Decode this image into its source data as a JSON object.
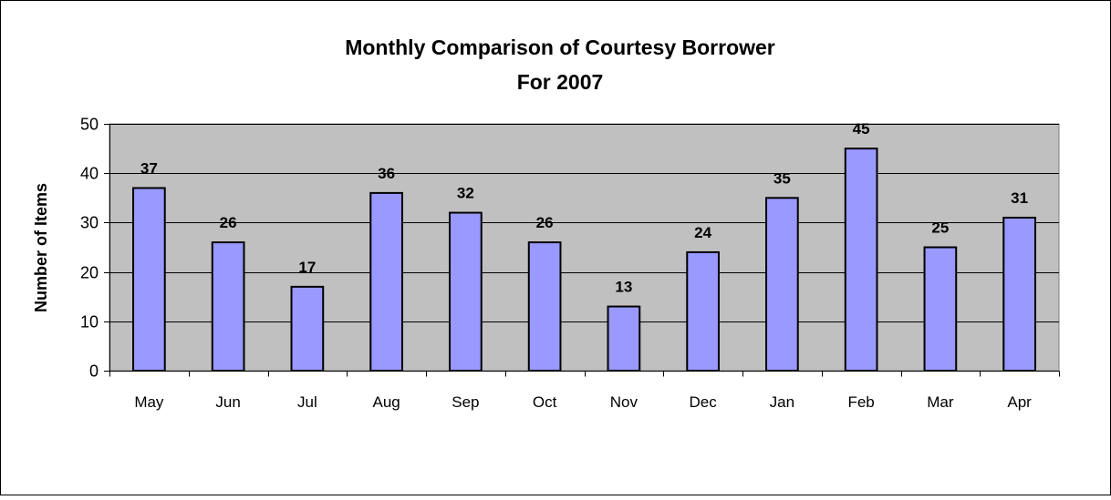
{
  "chart_data": {
    "type": "bar",
    "title": "Monthly Comparison of Courtesy Borrower",
    "subtitle": "For 2007",
    "xlabel": "",
    "ylabel": "Number of Items",
    "categories": [
      "May",
      "Jun",
      "Jul",
      "Aug",
      "Sep",
      "Oct",
      "Nov",
      "Dec",
      "Jan",
      "Feb",
      "Mar",
      "Apr"
    ],
    "values": [
      37,
      26,
      17,
      36,
      32,
      26,
      13,
      24,
      35,
      45,
      25,
      31
    ],
    "ylim": [
      0,
      50
    ],
    "yticks": [
      0,
      10,
      20,
      30,
      40,
      50
    ],
    "grid": true,
    "legend": "none",
    "data_labels": true,
    "colors": {
      "bar_fill": "#9999ff",
      "bar_stroke": "#000000",
      "plot_background": "#c0c0c0",
      "gridline": "#000000",
      "page_background": "#ffffff"
    }
  }
}
